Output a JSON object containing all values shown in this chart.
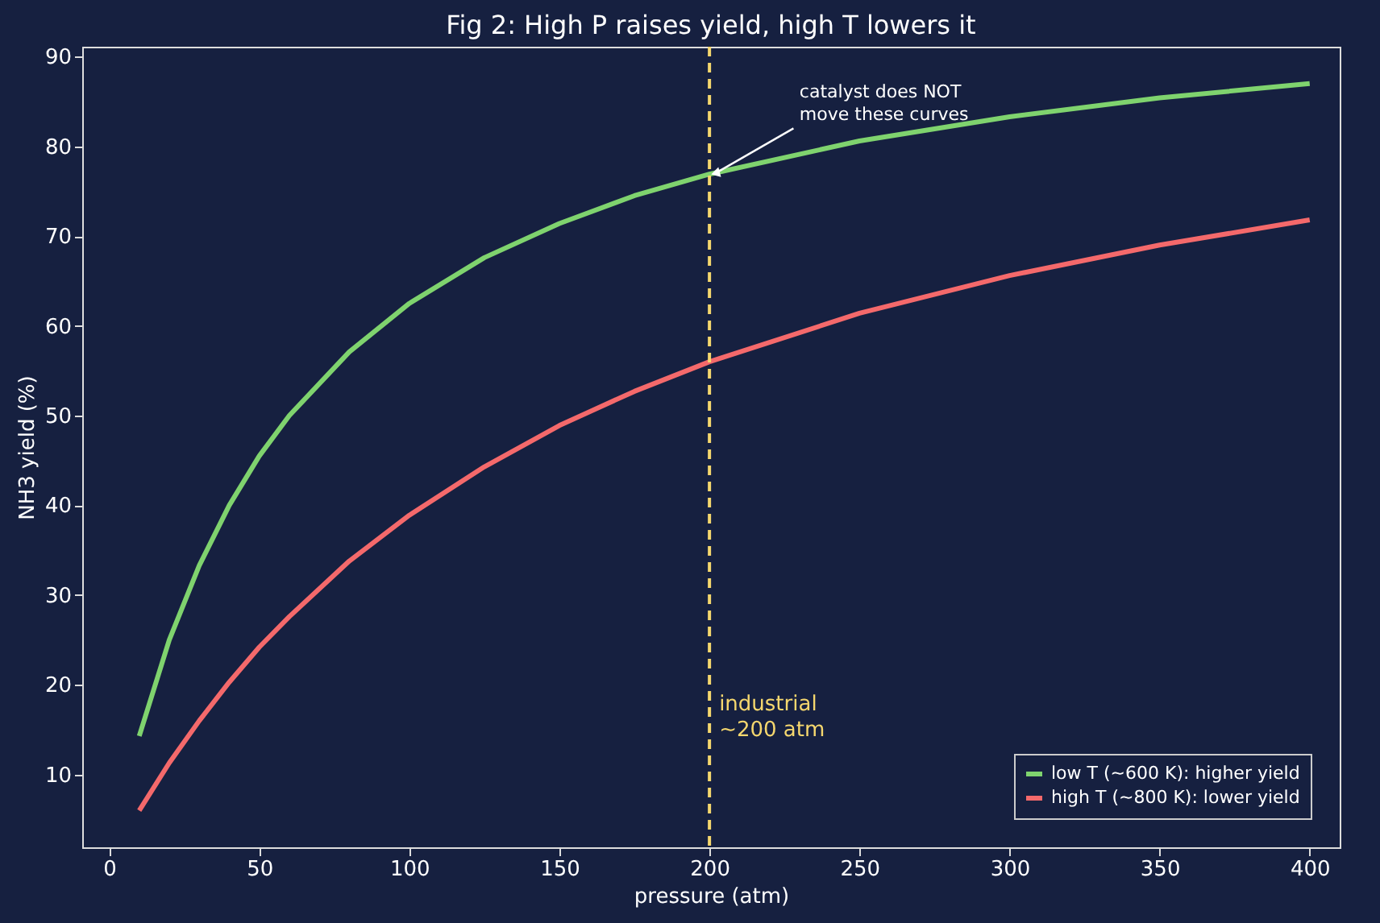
{
  "chart_data": {
    "type": "line",
    "title": "Fig 2: High P raises yield, high T lowers it",
    "xlabel": "pressure (atm)",
    "ylabel": "NH3 yield (%)",
    "x": [
      10,
      20,
      30,
      40,
      50,
      60,
      80,
      100,
      125,
      150,
      175,
      200,
      250,
      300,
      350,
      400
    ],
    "series": [
      {
        "name": "low T (~600 K): higher yield",
        "color": "#7fd36e",
        "values": [
          14.3,
          25.0,
          33.3,
          40.0,
          45.5,
          50.0,
          57.1,
          62.5,
          67.6,
          71.4,
          74.5,
          76.9,
          80.6,
          83.3,
          85.4,
          87.0
        ]
      },
      {
        "name": "high T (~800 K): lower yield",
        "color": "#f4696b",
        "values": [
          6.0,
          11.3,
          16.0,
          20.3,
          24.2,
          27.6,
          33.8,
          38.9,
          44.3,
          48.9,
          52.7,
          56.0,
          61.4,
          65.6,
          69.0,
          71.8
        ]
      }
    ],
    "xlim": [
      -9,
      410
    ],
    "ylim": [
      1.9,
      91.1
    ],
    "xticks": [
      0,
      50,
      100,
      150,
      200,
      250,
      300,
      350,
      400
    ],
    "yticks": [
      10,
      20,
      30,
      40,
      50,
      60,
      70,
      80,
      90
    ],
    "ref_lines": [
      {
        "axis": "x",
        "value": 200,
        "label": "industrial\n~200 atm",
        "color": "#f5d76e",
        "line_style": "dashed"
      }
    ],
    "annotations": [
      {
        "text": "catalyst does NOT\nmove these curves",
        "x": 200,
        "y": 77
      }
    ],
    "legend": "bottom right",
    "grid": false,
    "marker": "none",
    "line_style": "solid"
  }
}
